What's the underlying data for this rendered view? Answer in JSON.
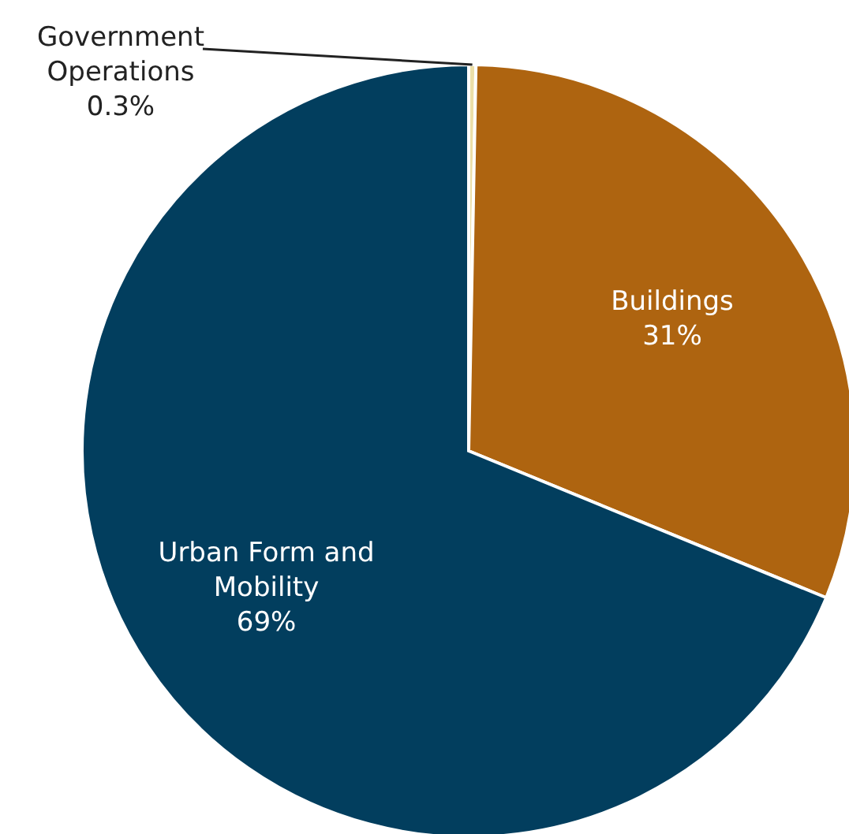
{
  "chart_data": {
    "type": "pie",
    "categories": [
      "Government Operations",
      "Buildings",
      "Urban Form and Mobility"
    ],
    "values": [
      0.3,
      31,
      69
    ],
    "value_labels": [
      "0.3%",
      "31%",
      "69%"
    ],
    "colors": [
      "#ecdfa8",
      "#ae6410",
      "#023e5e"
    ],
    "legend": false
  }
}
